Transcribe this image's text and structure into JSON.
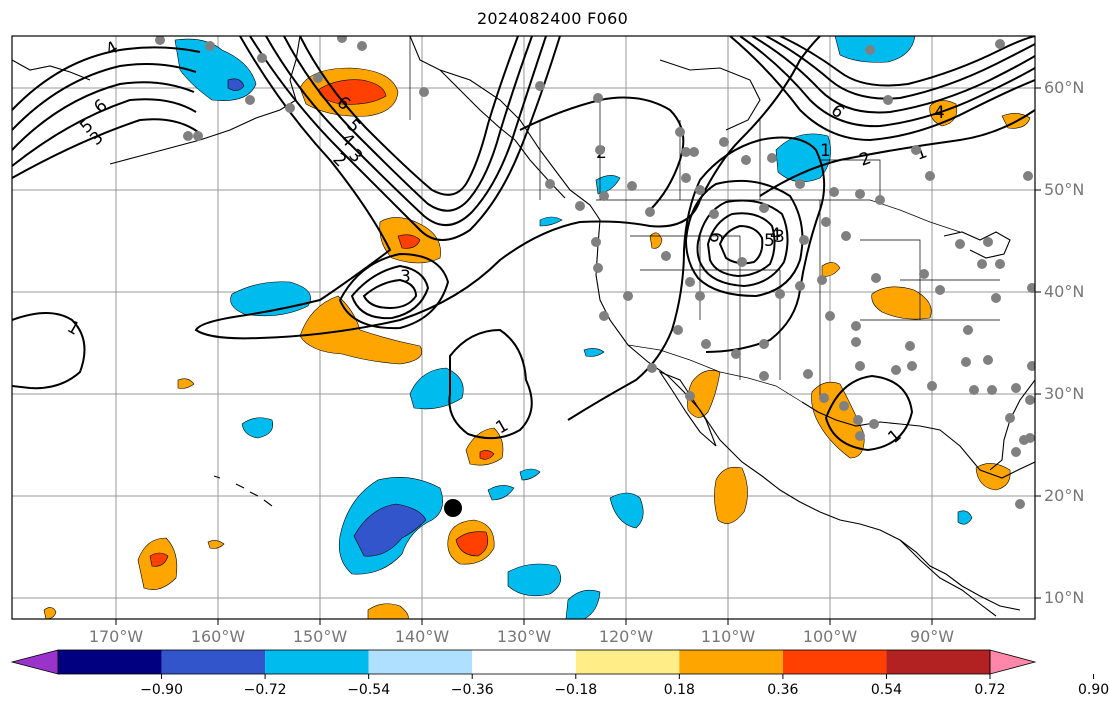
{
  "title": "2024082400 F060",
  "lat_labels": [
    "60°N",
    "50°N",
    "40°N",
    "30°N",
    "20°N",
    "10°N"
  ],
  "lon_labels": [
    "170°W",
    "160°W",
    "150°W",
    "140°W",
    "130°W",
    "120°W",
    "110°W",
    "100°W",
    "90°W"
  ],
  "contour_labels": [
    "6",
    "5",
    "4",
    "3",
    "6",
    "5",
    "4",
    "3",
    "2",
    "3",
    "2",
    "1",
    "6",
    "2",
    "1",
    "6",
    "5",
    "4",
    "3",
    "1",
    "1",
    "1",
    "4"
  ],
  "colorbar": {
    "ticks": [
      "−0.90",
      "−0.72",
      "−0.54",
      "−0.36",
      "−0.18",
      "0.18",
      "0.36",
      "0.54",
      "0.72",
      "0.90"
    ],
    "colors": [
      "#9933cc",
      "#000080",
      "#3355cc",
      "#00bbee",
      "#b0e0ff",
      "#ffffff",
      "#ffee88",
      "#ffa500",
      "#ff4000",
      "#b22222",
      "#ff88aa"
    ]
  },
  "legend_colors": {
    "neg_strong": "#3355cc",
    "neg_mid": "#00bbee",
    "neg_weak": "#b0e0ff",
    "pos_weak": "#ffee88",
    "pos_mid": "#ffa500",
    "pos_strong": "#ff4000",
    "purple": "#9933cc",
    "station": "#808080"
  }
}
